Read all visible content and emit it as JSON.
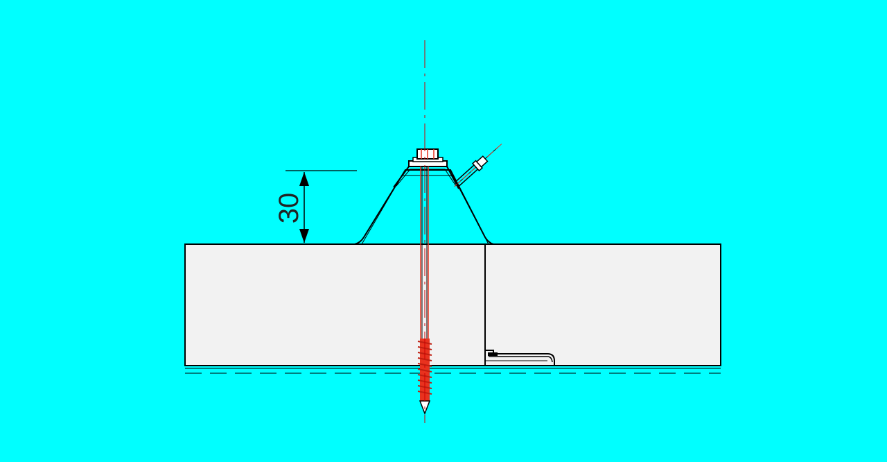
{
  "drawing": {
    "dimension_label": "30",
    "colors": {
      "background": "#00FFFF",
      "panel_fill": "#F2F2F2",
      "line": "#000000",
      "screw": "#E8321E",
      "centerline": "#CC0000"
    }
  }
}
